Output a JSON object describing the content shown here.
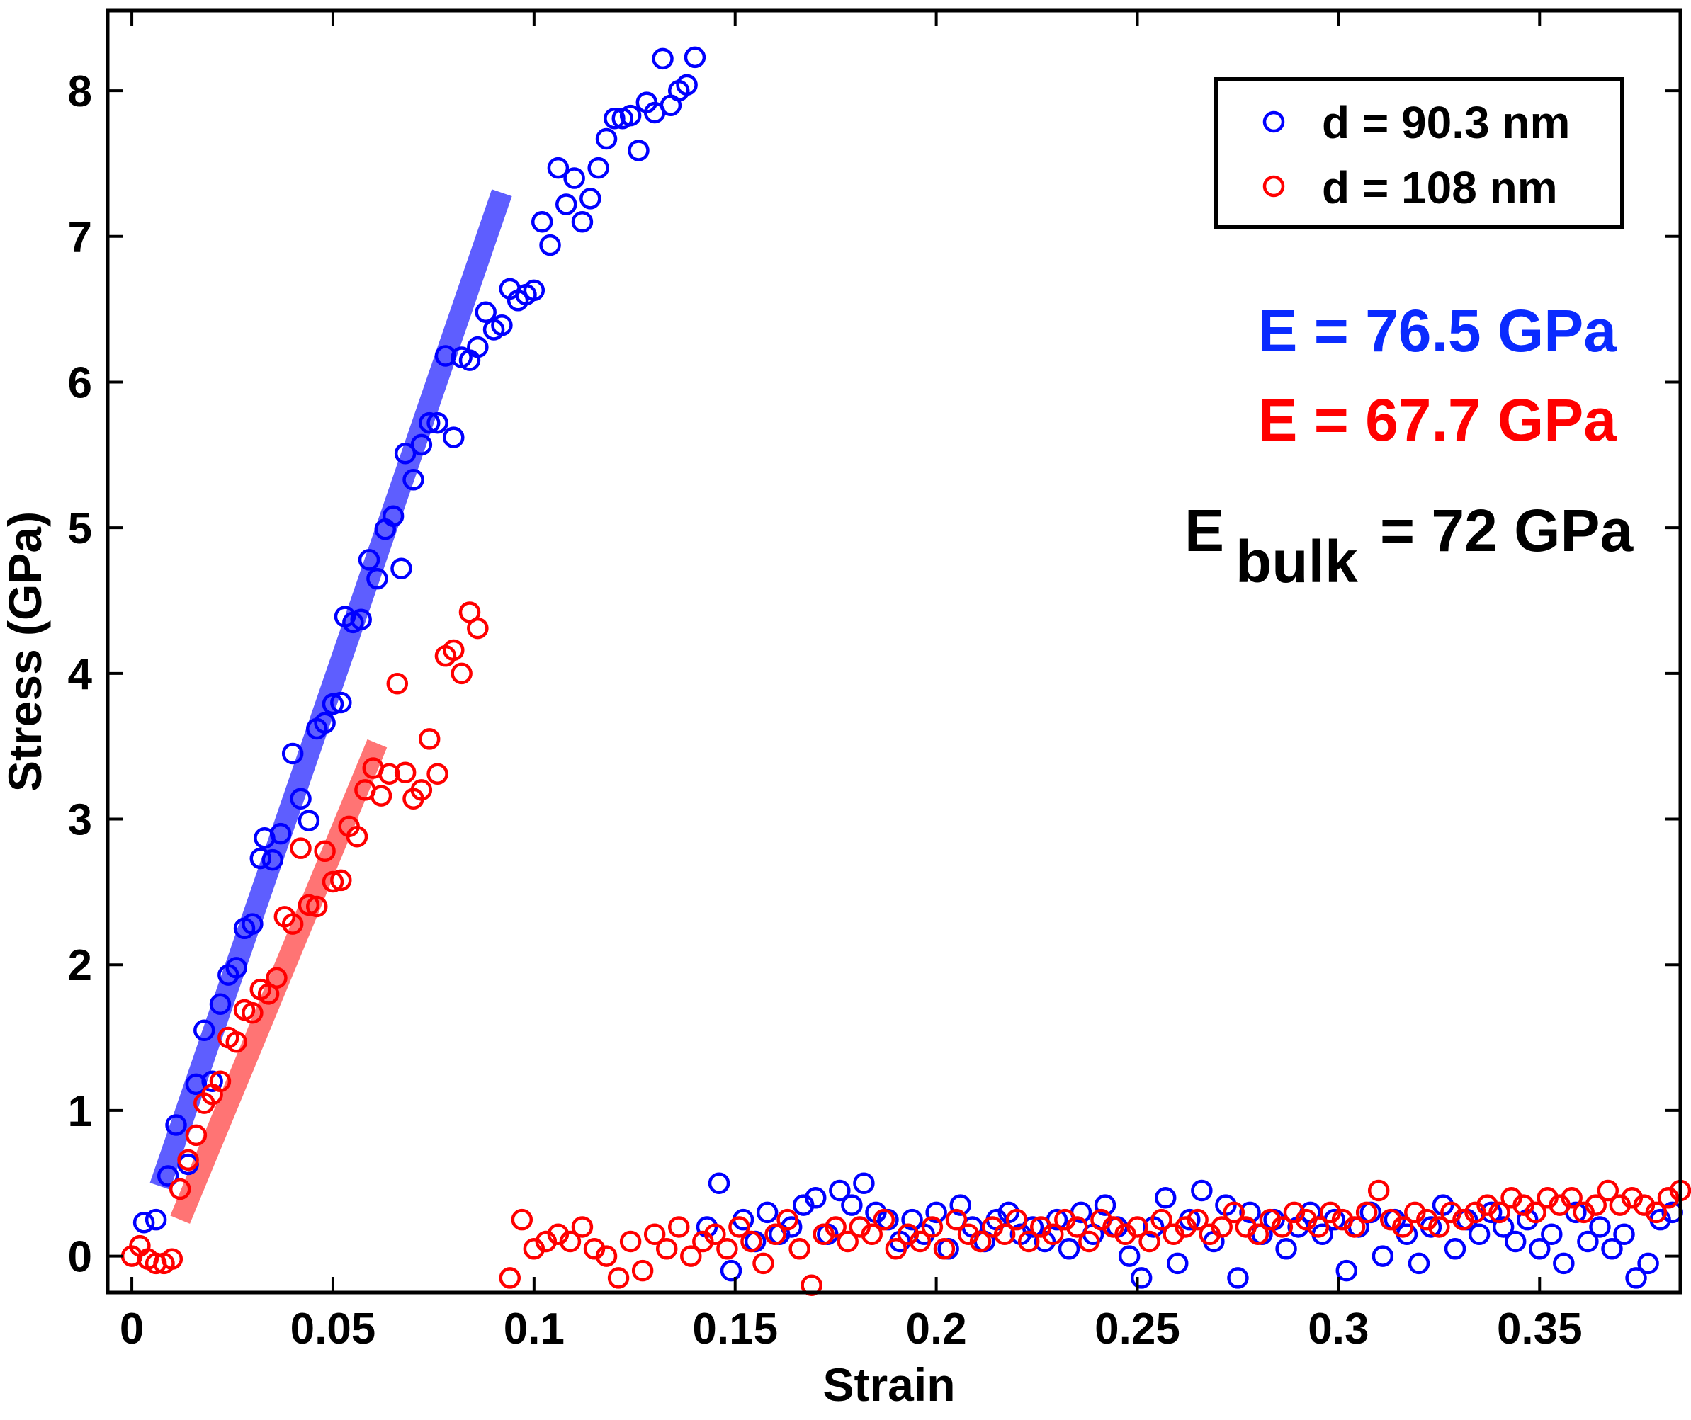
{
  "chart_data": {
    "type": "scatter",
    "title": "",
    "xlabel": "Strain",
    "ylabel": "Stress (GPa)",
    "xlim": [
      -0.006,
      0.385
    ],
    "ylim": [
      -0.25,
      8.55
    ],
    "xticks": [
      0,
      0.05,
      0.1,
      0.15,
      0.2,
      0.25,
      0.3,
      0.35
    ],
    "xtick_labels": [
      "0",
      "0.05",
      "0.1",
      "0.15",
      "0.2",
      "0.25",
      "0.3",
      "0.35"
    ],
    "yticks": [
      0,
      1,
      2,
      3,
      4,
      5,
      6,
      7,
      8
    ],
    "ytick_labels": [
      "0",
      "1",
      "2",
      "3",
      "4",
      "5",
      "6",
      "7",
      "8"
    ],
    "grid": false,
    "legend_position": "top-right",
    "series": [
      {
        "name": "d = 90.3 nm",
        "color": "#0000ff",
        "marker": "open-circle",
        "x": [
          0.003,
          0.006,
          0.009,
          0.011,
          0.014,
          0.016,
          0.018,
          0.02,
          0.022,
          0.024,
          0.026,
          0.028,
          0.03,
          0.032,
          0.033,
          0.035,
          0.037,
          0.04,
          0.042,
          0.044,
          0.046,
          0.048,
          0.05,
          0.052,
          0.053,
          0.055,
          0.057,
          0.059,
          0.061,
          0.063,
          0.065,
          0.067,
          0.068,
          0.07,
          0.072,
          0.074,
          0.076,
          0.078,
          0.08,
          0.082,
          0.084,
          0.086,
          0.088,
          0.09,
          0.092,
          0.094,
          0.096,
          0.098,
          0.1,
          0.102,
          0.104,
          0.106,
          0.108,
          0.11,
          0.112,
          0.114,
          0.116,
          0.118,
          0.12,
          0.122,
          0.124,
          0.126,
          0.128,
          0.13,
          0.132,
          0.134,
          0.136,
          0.138,
          0.14,
          0.143,
          0.146,
          0.149,
          0.152,
          0.155,
          0.158,
          0.161,
          0.164,
          0.167,
          0.17,
          0.173,
          0.176,
          0.179,
          0.182,
          0.185,
          0.188,
          0.191,
          0.194,
          0.197,
          0.2,
          0.203,
          0.206,
          0.209,
          0.212,
          0.215,
          0.218,
          0.221,
          0.224,
          0.227,
          0.23,
          0.233,
          0.236,
          0.239,
          0.242,
          0.245,
          0.248,
          0.251,
          0.254,
          0.257,
          0.26,
          0.263,
          0.266,
          0.269,
          0.272,
          0.275,
          0.278,
          0.281,
          0.284,
          0.287,
          0.29,
          0.293,
          0.296,
          0.299,
          0.302,
          0.305,
          0.308,
          0.311,
          0.314,
          0.317,
          0.32,
          0.323,
          0.326,
          0.329,
          0.332,
          0.335,
          0.338,
          0.341,
          0.344,
          0.347,
          0.35,
          0.353,
          0.356,
          0.359,
          0.362,
          0.365,
          0.368,
          0.371,
          0.374,
          0.377,
          0.38,
          0.383
        ],
        "values": [
          0.23,
          0.25,
          0.55,
          0.9,
          0.63,
          1.18,
          1.55,
          1.2,
          1.73,
          1.93,
          1.98,
          2.25,
          2.28,
          2.73,
          2.87,
          2.72,
          2.9,
          3.45,
          3.14,
          2.99,
          3.62,
          3.66,
          3.79,
          3.8,
          4.39,
          4.35,
          4.37,
          4.78,
          4.65,
          4.99,
          5.08,
          4.72,
          5.51,
          5.33,
          5.57,
          5.72,
          5.72,
          6.18,
          5.62,
          6.17,
          6.15,
          6.24,
          6.48,
          6.36,
          6.39,
          6.64,
          6.56,
          6.6,
          6.63,
          7.1,
          6.94,
          7.47,
          7.22,
          7.4,
          7.1,
          7.26,
          7.47,
          7.67,
          7.81,
          7.81,
          7.83,
          7.59,
          7.92,
          7.85,
          8.22,
          7.9,
          8.0,
          8.04,
          8.23,
          0.2,
          0.5,
          -0.1,
          0.25,
          0.1,
          0.3,
          0.15,
          0.2,
          0.35,
          0.4,
          0.15,
          0.45,
          0.35,
          0.5,
          0.3,
          0.25,
          0.1,
          0.25,
          0.15,
          0.3,
          0.05,
          0.35,
          0.2,
          0.1,
          0.25,
          0.3,
          0.15,
          0.2,
          0.1,
          0.25,
          0.05,
          0.3,
          0.15,
          0.35,
          0.2,
          0.0,
          -0.15,
          0.2,
          0.4,
          -0.05,
          0.25,
          0.45,
          0.1,
          0.35,
          -0.15,
          0.3,
          0.15,
          0.25,
          0.05,
          0.2,
          0.3,
          0.15,
          0.25,
          -0.1,
          0.2,
          0.3,
          0.0,
          0.25,
          0.15,
          -0.05,
          0.2,
          0.35,
          0.05,
          0.25,
          0.15,
          0.3,
          0.2,
          0.1,
          0.25,
          0.05,
          0.15,
          -0.05,
          0.3,
          0.1,
          0.2,
          0.05,
          0.15,
          -0.15,
          -0.05,
          0.25,
          0.3
        ]
      },
      {
        "name": "d = 108 nm",
        "color": "#ff0000",
        "marker": "open-circle",
        "x": [
          0.0,
          0.002,
          0.004,
          0.006,
          0.008,
          0.01,
          0.012,
          0.014,
          0.016,
          0.018,
          0.02,
          0.022,
          0.024,
          0.026,
          0.028,
          0.03,
          0.032,
          0.034,
          0.036,
          0.038,
          0.04,
          0.042,
          0.044,
          0.046,
          0.048,
          0.05,
          0.052,
          0.054,
          0.056,
          0.058,
          0.06,
          0.062,
          0.064,
          0.066,
          0.068,
          0.07,
          0.072,
          0.074,
          0.076,
          0.078,
          0.08,
          0.082,
          0.084,
          0.086,
          0.094,
          0.097,
          0.1,
          0.103,
          0.106,
          0.109,
          0.112,
          0.115,
          0.118,
          0.121,
          0.124,
          0.127,
          0.13,
          0.133,
          0.136,
          0.139,
          0.142,
          0.145,
          0.148,
          0.151,
          0.154,
          0.157,
          0.16,
          0.163,
          0.166,
          0.169,
          0.172,
          0.175,
          0.178,
          0.181,
          0.184,
          0.187,
          0.19,
          0.193,
          0.196,
          0.199,
          0.202,
          0.205,
          0.208,
          0.211,
          0.214,
          0.217,
          0.22,
          0.223,
          0.226,
          0.229,
          0.232,
          0.235,
          0.238,
          0.241,
          0.244,
          0.247,
          0.25,
          0.253,
          0.256,
          0.259,
          0.262,
          0.265,
          0.268,
          0.271,
          0.274,
          0.277,
          0.28,
          0.283,
          0.286,
          0.289,
          0.292,
          0.295,
          0.298,
          0.301,
          0.304,
          0.307,
          0.31,
          0.313,
          0.316,
          0.319,
          0.322,
          0.325,
          0.328,
          0.331,
          0.334,
          0.337,
          0.34,
          0.343,
          0.346,
          0.349,
          0.352,
          0.355,
          0.358,
          0.361,
          0.364,
          0.367,
          0.37,
          0.373,
          0.376,
          0.379,
          0.382,
          0.385
        ],
        "values": [
          0.0,
          0.07,
          -0.02,
          -0.05,
          -0.05,
          -0.02,
          0.46,
          0.66,
          0.83,
          1.05,
          1.11,
          1.2,
          1.5,
          1.47,
          1.69,
          1.67,
          1.83,
          1.8,
          1.91,
          2.33,
          2.28,
          2.8,
          2.41,
          2.4,
          2.78,
          2.57,
          2.58,
          2.95,
          2.88,
          3.2,
          3.35,
          3.16,
          3.31,
          3.93,
          3.32,
          3.14,
          3.2,
          3.55,
          3.31,
          4.12,
          4.16,
          4.0,
          4.42,
          4.31,
          -0.15,
          0.25,
          0.05,
          0.1,
          0.15,
          0.1,
          0.2,
          0.05,
          0.0,
          -0.15,
          0.1,
          -0.1,
          0.15,
          0.05,
          0.2,
          0.0,
          0.1,
          0.15,
          0.05,
          0.2,
          0.1,
          -0.05,
          0.15,
          0.25,
          0.05,
          -0.2,
          0.15,
          0.2,
          0.1,
          0.2,
          0.15,
          0.25,
          0.05,
          0.15,
          0.1,
          0.2,
          0.05,
          0.25,
          0.15,
          0.1,
          0.2,
          0.15,
          0.25,
          0.1,
          0.2,
          0.15,
          0.25,
          0.2,
          0.1,
          0.25,
          0.2,
          0.15,
          0.2,
          0.1,
          0.25,
          0.15,
          0.2,
          0.25,
          0.15,
          0.2,
          0.3,
          0.2,
          0.15,
          0.25,
          0.2,
          0.3,
          0.25,
          0.2,
          0.3,
          0.25,
          0.2,
          0.3,
          0.45,
          0.25,
          0.2,
          0.3,
          0.25,
          0.2,
          0.3,
          0.25,
          0.3,
          0.35,
          0.3,
          0.4,
          0.35,
          0.3,
          0.4,
          0.35,
          0.4,
          0.3,
          0.35,
          0.45,
          0.35,
          0.4,
          0.35,
          0.3,
          0.4,
          0.45
        ]
      }
    ],
    "fit_lines": [
      {
        "name": "E = 76.5 GPa fit",
        "color": "#4d4dff",
        "x": [
          0.007,
          0.092
        ],
        "y": [
          0.48,
          7.3
        ]
      },
      {
        "name": "E = 67.7 GPa fit",
        "color": "#ff6666",
        "x": [
          0.012,
          0.061
        ],
        "y": [
          0.25,
          3.52
        ]
      }
    ],
    "annotations": {
      "e_blue": {
        "text": "E = 76.5 GPa",
        "color": "#0a2bff"
      },
      "e_red": {
        "text": "E = 67.7 GPa",
        "color": "#ff0000"
      },
      "e_bulk": {
        "prefix": "E",
        "subscript": "bulk",
        "suffix": "= 72 GPa",
        "color": "#000000"
      }
    }
  }
}
